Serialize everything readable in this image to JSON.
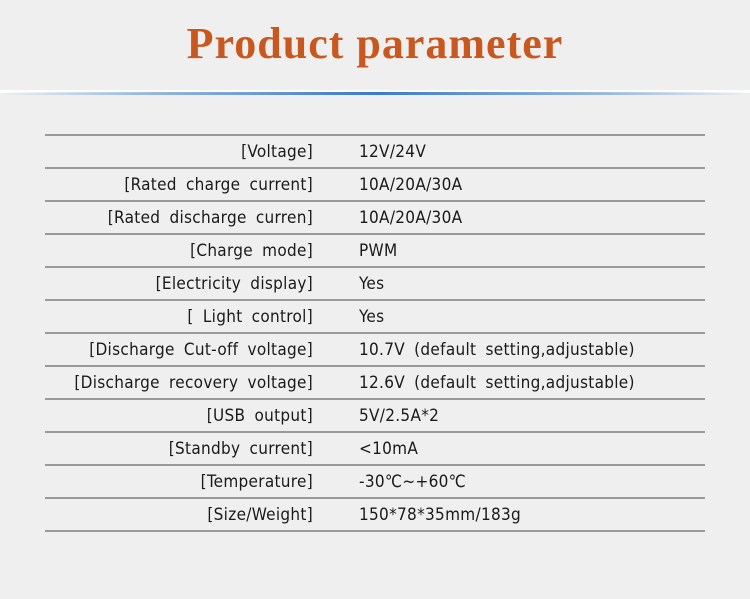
{
  "title": "Product parameter",
  "colors": {
    "title": "#c9581f",
    "divider": "#3a7bc8",
    "rule": "#9a9a9a"
  },
  "rows": [
    {
      "label": "[Voltage]",
      "value": "12V/24V"
    },
    {
      "label": "[Rated charge current]",
      "value": "10A/20A/30A"
    },
    {
      "label": "[Rated discharge curren]",
      "value": "10A/20A/30A"
    },
    {
      "label": "[Charge mode]",
      "value": "PWM"
    },
    {
      "label": "[Electricity display]",
      "value": "Yes"
    },
    {
      "label": "[ Light control]",
      "value": "Yes"
    },
    {
      "label": "[Discharge Cut-off voltage]",
      "value": "10.7V (default setting,adjustable)"
    },
    {
      "label": "[Discharge recovery voltage]",
      "value": "12.6V (default setting,adjustable)"
    },
    {
      "label": "[USB output]",
      "value": "5V/2.5A*2"
    },
    {
      "label": "[Standby current]",
      "value": "<10mA"
    },
    {
      "label": "[Temperature]",
      "value": "-30℃~+60℃"
    },
    {
      "label": "[Size/Weight]",
      "value": "150*78*35mm/183g"
    }
  ]
}
